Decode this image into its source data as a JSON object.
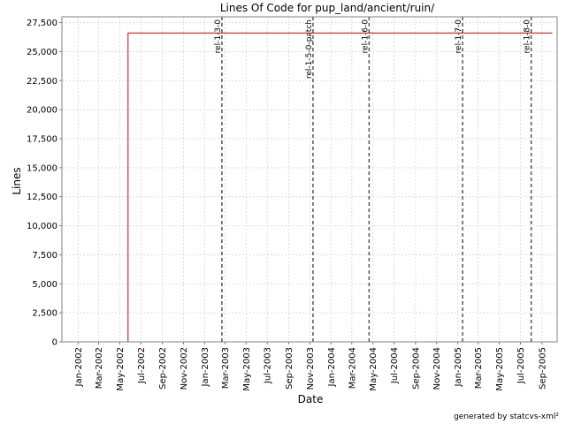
{
  "chart_data": {
    "type": "line",
    "title": "Lines Of Code for pup_land/ancient/ruin/",
    "xlabel": "Date",
    "ylabel": "Lines",
    "ylim": [
      0,
      28000
    ],
    "xlim": [
      "2001-11-15",
      "2005-10-15"
    ],
    "grid": true,
    "y_ticks": [
      0,
      2500,
      5000,
      7500,
      10000,
      12500,
      15000,
      17500,
      20000,
      22500,
      25000,
      27500
    ],
    "y_tick_labels": [
      "0",
      "2,500",
      "5,000",
      "7,500",
      "10,000",
      "12,500",
      "15,000",
      "17,500",
      "20,000",
      "22,500",
      "25,000",
      "27,500"
    ],
    "x_ticks": [
      "2002-01-01",
      "2002-03-01",
      "2002-05-01",
      "2002-07-01",
      "2002-09-01",
      "2002-11-01",
      "2003-01-01",
      "2003-03-01",
      "2003-05-01",
      "2003-07-01",
      "2003-09-01",
      "2003-11-01",
      "2004-01-01",
      "2004-03-01",
      "2004-05-01",
      "2004-07-01",
      "2004-09-01",
      "2004-11-01",
      "2005-01-01",
      "2005-03-01",
      "2005-05-01",
      "2005-07-01",
      "2005-09-01"
    ],
    "x_tick_labels": [
      "Jan-2002",
      "Mar-2002",
      "May-2002",
      "Jul-2002",
      "Sep-2002",
      "Nov-2002",
      "Jan-2003",
      "Mar-2003",
      "May-2003",
      "Jul-2003",
      "Sep-2003",
      "Nov-2003",
      "Jan-2004",
      "Mar-2004",
      "May-2004",
      "Jul-2004",
      "Sep-2004",
      "Nov-2004",
      "Jan-2005",
      "Mar-2005",
      "May-2005",
      "Jul-2005",
      "Sep-2005"
    ],
    "series": [
      {
        "color": "#cc0000",
        "points": [
          {
            "x": "2002-01-01",
            "y": 0
          },
          {
            "x": "2002-05-25",
            "y": 0
          },
          {
            "x": "2002-05-25",
            "y": 26600
          },
          {
            "x": "2005-10-01",
            "y": 26600
          }
        ]
      }
    ],
    "markers": [
      {
        "label": "rel-1-3-0",
        "x": "2003-02-20"
      },
      {
        "label": "rel-1-5-0-patch",
        "x": "2003-11-10"
      },
      {
        "label": "rel-1-6-0",
        "x": "2004-04-20"
      },
      {
        "label": "rel-1-7-0",
        "x": "2005-01-15"
      },
      {
        "label": "rel-1-8-0",
        "x": "2005-08-01"
      }
    ]
  },
  "footer": "generated by statcvs-xml²"
}
